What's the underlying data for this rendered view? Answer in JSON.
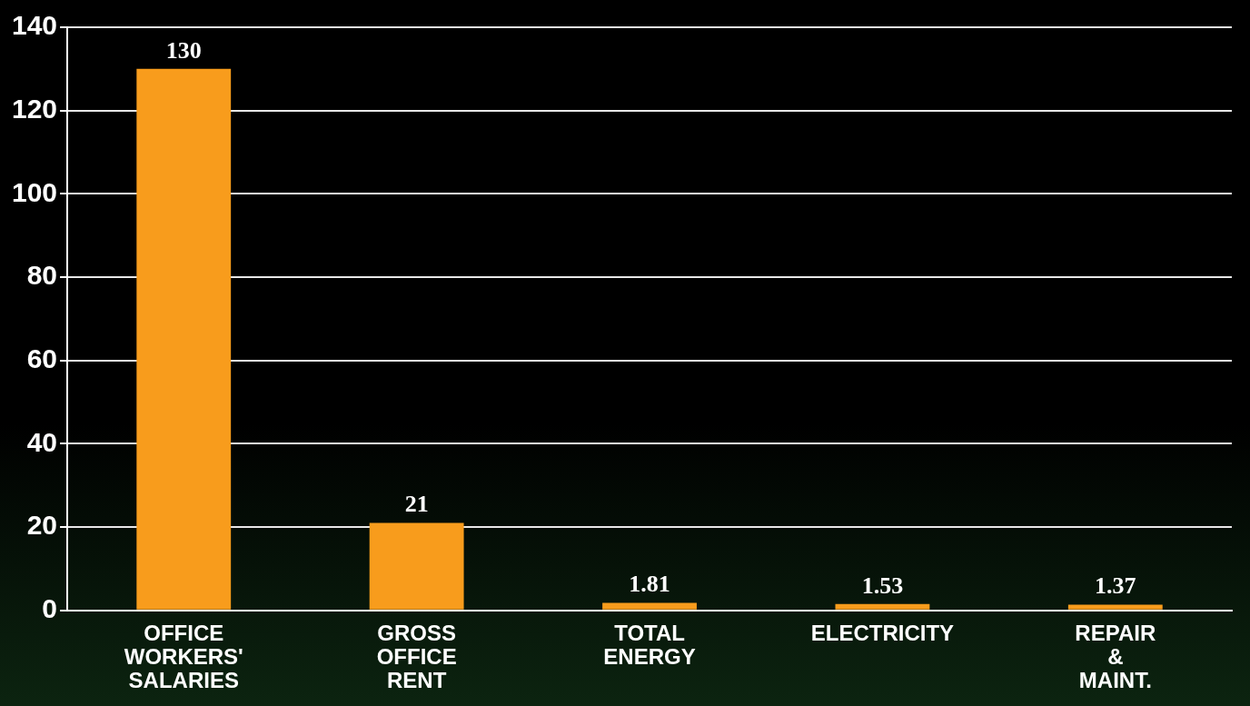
{
  "chart_data": {
    "type": "bar",
    "categories": [
      "OFFICE WORKERS' SALARIES",
      "GROSS OFFICE RENT",
      "TOTAL ENERGY",
      "ELECTRICITY",
      "REPAIR & MAINT."
    ],
    "values": [
      130,
      21,
      1.81,
      1.53,
      1.37
    ],
    "color": "#f89c1c",
    "ylim": [
      0,
      140
    ],
    "yticks": [
      0,
      20,
      40,
      60,
      80,
      100,
      120,
      140
    ],
    "grid": "y",
    "legend": false,
    "data_labels": true
  }
}
